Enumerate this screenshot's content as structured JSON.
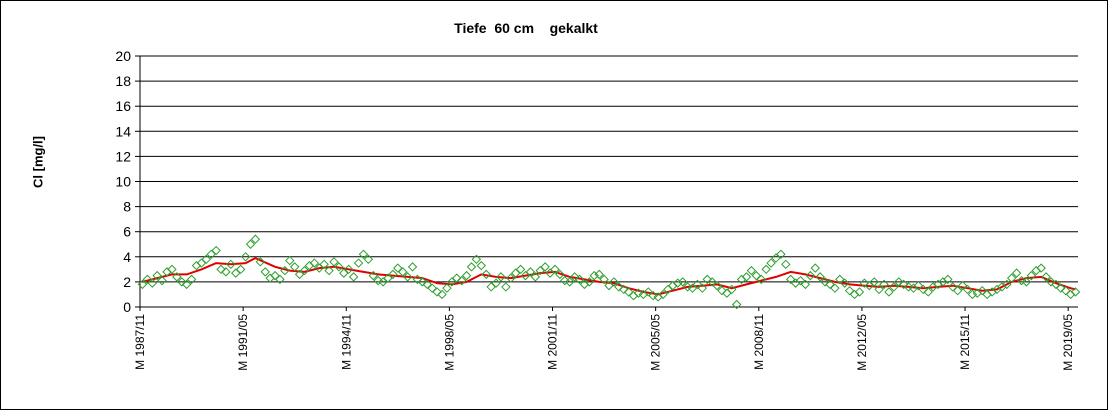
{
  "chart_data": {
    "type": "scatter",
    "title": "Tiefe  60 cm    gekalkt",
    "ylabel": "Cl [mg/l]",
    "xlabel": "",
    "ylim": [
      0,
      20
    ],
    "yticks": [
      0,
      2,
      4,
      6,
      8,
      10,
      12,
      14,
      16,
      18,
      20
    ],
    "grid": "horizontal",
    "legend": "none",
    "colors": {
      "points": "#2e9e2e",
      "trend": "#e00000",
      "grid": "#000000"
    },
    "xlim": [
      "1987-11",
      "2019-09"
    ],
    "xticks": [
      {
        "label": "M 1987/11",
        "date": "1987-11"
      },
      {
        "label": "M 1991/05",
        "date": "1991-05"
      },
      {
        "label": "M 1994/11",
        "date": "1994-11"
      },
      {
        "label": "M 1998/05",
        "date": "1998-05"
      },
      {
        "label": "M 2001/11",
        "date": "2001-11"
      },
      {
        "label": "M 2005/05",
        "date": "2005-05"
      },
      {
        "label": "M 2008/11",
        "date": "2008-11"
      },
      {
        "label": "M 2012/05",
        "date": "2012-05"
      },
      {
        "label": "M 2015/11",
        "date": "2015-11"
      },
      {
        "label": "M 2019/05",
        "date": "2019-05"
      }
    ],
    "series": [
      {
        "type": "scatter",
        "points": [
          [
            "1987-12",
            1.8
          ],
          [
            "1988-02",
            2.2
          ],
          [
            "1988-04",
            1.9
          ],
          [
            "1988-06",
            2.5
          ],
          [
            "1988-08",
            2.1
          ],
          [
            "1988-10",
            2.8
          ],
          [
            "1988-12",
            3.0
          ],
          [
            "1989-02",
            2.4
          ],
          [
            "1989-04",
            2.0
          ],
          [
            "1989-06",
            1.8
          ],
          [
            "1989-08",
            2.2
          ],
          [
            "1989-10",
            3.3
          ],
          [
            "1989-12",
            3.5
          ],
          [
            "1990-02",
            3.8
          ],
          [
            "1990-04",
            4.2
          ],
          [
            "1990-06",
            4.5
          ],
          [
            "1990-08",
            3.0
          ],
          [
            "1990-10",
            2.8
          ],
          [
            "1990-12",
            3.4
          ],
          [
            "1991-02",
            2.7
          ],
          [
            "1991-04",
            3.0
          ],
          [
            "1991-06",
            4.0
          ],
          [
            "1991-08",
            5.0
          ],
          [
            "1991-10",
            5.4
          ],
          [
            "1991-12",
            3.6
          ],
          [
            "1992-02",
            2.8
          ],
          [
            "1992-04",
            2.3
          ],
          [
            "1992-06",
            2.5
          ],
          [
            "1992-08",
            2.2
          ],
          [
            "1992-10",
            2.9
          ],
          [
            "1992-12",
            3.7
          ],
          [
            "1993-02",
            3.2
          ],
          [
            "1993-04",
            2.6
          ],
          [
            "1993-06",
            2.9
          ],
          [
            "1993-08",
            3.3
          ],
          [
            "1993-10",
            3.5
          ],
          [
            "1993-12",
            3.1
          ],
          [
            "1994-02",
            3.4
          ],
          [
            "1994-04",
            2.9
          ],
          [
            "1994-06",
            3.6
          ],
          [
            "1994-08",
            3.2
          ],
          [
            "1994-10",
            2.7
          ],
          [
            "1994-12",
            3.0
          ],
          [
            "1995-02",
            2.4
          ],
          [
            "1995-04",
            3.5
          ],
          [
            "1995-06",
            4.2
          ],
          [
            "1995-08",
            3.8
          ],
          [
            "1995-10",
            2.5
          ],
          [
            "1995-12",
            2.1
          ],
          [
            "1996-02",
            2.0
          ],
          [
            "1996-04",
            2.3
          ],
          [
            "1996-06",
            2.6
          ],
          [
            "1996-08",
            3.1
          ],
          [
            "1996-10",
            2.8
          ],
          [
            "1996-12",
            2.4
          ],
          [
            "1997-02",
            3.2
          ],
          [
            "1997-04",
            2.2
          ],
          [
            "1997-06",
            2.0
          ],
          [
            "1997-08",
            1.8
          ],
          [
            "1997-10",
            1.5
          ],
          [
            "1997-12",
            1.2
          ],
          [
            "1998-02",
            1.0
          ],
          [
            "1998-04",
            1.5
          ],
          [
            "1998-06",
            2.0
          ],
          [
            "1998-08",
            2.3
          ],
          [
            "1998-10",
            2.1
          ],
          [
            "1998-12",
            2.5
          ],
          [
            "1999-02",
            3.2
          ],
          [
            "1999-04",
            3.8
          ],
          [
            "1999-06",
            3.3
          ],
          [
            "1999-08",
            2.6
          ],
          [
            "1999-10",
            1.6
          ],
          [
            "1999-12",
            1.9
          ],
          [
            "2000-02",
            2.4
          ],
          [
            "2000-04",
            1.6
          ],
          [
            "2000-06",
            2.3
          ],
          [
            "2000-08",
            2.7
          ],
          [
            "2000-10",
            3.0
          ],
          [
            "2000-12",
            2.5
          ],
          [
            "2001-02",
            2.8
          ],
          [
            "2001-04",
            2.4
          ],
          [
            "2001-06",
            2.9
          ],
          [
            "2001-08",
            3.2
          ],
          [
            "2001-10",
            2.7
          ],
          [
            "2001-12",
            3.0
          ],
          [
            "2002-02",
            2.6
          ],
          [
            "2002-04",
            2.1
          ],
          [
            "2002-06",
            2.0
          ],
          [
            "2002-08",
            2.4
          ],
          [
            "2002-10",
            2.2
          ],
          [
            "2002-12",
            1.8
          ],
          [
            "2003-02",
            2.0
          ],
          [
            "2003-04",
            2.5
          ],
          [
            "2003-06",
            2.6
          ],
          [
            "2003-08",
            2.2
          ],
          [
            "2003-10",
            1.7
          ],
          [
            "2003-12",
            2.0
          ],
          [
            "2004-02",
            1.6
          ],
          [
            "2004-04",
            1.4
          ],
          [
            "2004-06",
            1.2
          ],
          [
            "2004-08",
            0.9
          ],
          [
            "2004-10",
            1.1
          ],
          [
            "2004-12",
            1.0
          ],
          [
            "2005-02",
            1.2
          ],
          [
            "2005-04",
            0.9
          ],
          [
            "2005-06",
            0.8
          ],
          [
            "2005-08",
            1.0
          ],
          [
            "2005-10",
            1.4
          ],
          [
            "2005-12",
            1.7
          ],
          [
            "2006-02",
            1.9
          ],
          [
            "2006-04",
            2.0
          ],
          [
            "2006-06",
            1.6
          ],
          [
            "2006-08",
            1.5
          ],
          [
            "2006-10",
            1.8
          ],
          [
            "2006-12",
            1.5
          ],
          [
            "2007-02",
            2.2
          ],
          [
            "2007-04",
            2.0
          ],
          [
            "2007-06",
            1.7
          ],
          [
            "2007-08",
            1.3
          ],
          [
            "2007-10",
            1.1
          ],
          [
            "2007-12",
            1.4
          ],
          [
            "2008-02",
            0.2
          ],
          [
            "2008-04",
            2.2
          ],
          [
            "2008-06",
            2.4
          ],
          [
            "2008-08",
            2.9
          ],
          [
            "2008-10",
            2.5
          ],
          [
            "2008-12",
            2.2
          ],
          [
            "2009-02",
            3.0
          ],
          [
            "2009-04",
            3.5
          ],
          [
            "2009-06",
            3.9
          ],
          [
            "2009-08",
            4.2
          ],
          [
            "2009-10",
            3.4
          ],
          [
            "2009-12",
            2.2
          ],
          [
            "2010-02",
            1.9
          ],
          [
            "2010-04",
            2.1
          ],
          [
            "2010-06",
            1.8
          ],
          [
            "2010-08",
            2.5
          ],
          [
            "2010-10",
            3.1
          ],
          [
            "2010-12",
            2.4
          ],
          [
            "2011-02",
            2.0
          ],
          [
            "2011-04",
            1.8
          ],
          [
            "2011-06",
            1.5
          ],
          [
            "2011-08",
            2.2
          ],
          [
            "2011-10",
            1.9
          ],
          [
            "2011-12",
            1.3
          ],
          [
            "2012-02",
            1.0
          ],
          [
            "2012-04",
            1.2
          ],
          [
            "2012-06",
            1.9
          ],
          [
            "2012-08",
            1.7
          ],
          [
            "2012-10",
            2.0
          ],
          [
            "2012-12",
            1.4
          ],
          [
            "2013-02",
            1.8
          ],
          [
            "2013-04",
            1.2
          ],
          [
            "2013-06",
            1.6
          ],
          [
            "2013-08",
            2.0
          ],
          [
            "2013-10",
            1.8
          ],
          [
            "2013-12",
            1.6
          ],
          [
            "2014-02",
            1.5
          ],
          [
            "2014-04",
            1.7
          ],
          [
            "2014-06",
            1.4
          ],
          [
            "2014-08",
            1.2
          ],
          [
            "2014-10",
            1.6
          ],
          [
            "2014-12",
            1.8
          ],
          [
            "2015-02",
            2.0
          ],
          [
            "2015-04",
            2.2
          ],
          [
            "2015-06",
            1.6
          ],
          [
            "2015-08",
            1.3
          ],
          [
            "2015-10",
            1.7
          ],
          [
            "2015-12",
            1.4
          ],
          [
            "2016-02",
            1.0
          ],
          [
            "2016-04",
            1.1
          ],
          [
            "2016-06",
            1.3
          ],
          [
            "2016-08",
            1.0
          ],
          [
            "2016-10",
            1.2
          ],
          [
            "2016-12",
            1.4
          ],
          [
            "2017-02",
            1.6
          ],
          [
            "2017-04",
            1.8
          ],
          [
            "2017-06",
            2.3
          ],
          [
            "2017-08",
            2.7
          ],
          [
            "2017-10",
            2.1
          ],
          [
            "2017-12",
            2.0
          ],
          [
            "2018-02",
            2.5
          ],
          [
            "2018-04",
            2.9
          ],
          [
            "2018-06",
            3.1
          ],
          [
            "2018-08",
            2.4
          ],
          [
            "2018-10",
            2.0
          ],
          [
            "2018-12",
            1.8
          ],
          [
            "2019-02",
            1.5
          ],
          [
            "2019-04",
            1.3
          ],
          [
            "2019-06",
            1.0
          ],
          [
            "2019-08",
            1.2
          ]
        ]
      },
      {
        "type": "line",
        "points": [
          [
            "1987-12",
            2.0
          ],
          [
            "1988-06",
            2.3
          ],
          [
            "1988-12",
            2.6
          ],
          [
            "1989-06",
            2.6
          ],
          [
            "1989-12",
            3.0
          ],
          [
            "1990-06",
            3.5
          ],
          [
            "1990-12",
            3.4
          ],
          [
            "1991-06",
            3.5
          ],
          [
            "1991-10",
            3.9
          ],
          [
            "1992-06",
            3.2
          ],
          [
            "1992-12",
            2.9
          ],
          [
            "1993-06",
            2.8
          ],
          [
            "1993-12",
            3.1
          ],
          [
            "1994-06",
            3.2
          ],
          [
            "1994-12",
            3.0
          ],
          [
            "1995-06",
            2.8
          ],
          [
            "1995-12",
            2.6
          ],
          [
            "1996-06",
            2.5
          ],
          [
            "1996-12",
            2.4
          ],
          [
            "1997-06",
            2.3
          ],
          [
            "1997-12",
            1.9
          ],
          [
            "1998-06",
            1.8
          ],
          [
            "1998-12",
            2.0
          ],
          [
            "1999-06",
            2.6
          ],
          [
            "1999-12",
            2.4
          ],
          [
            "2000-06",
            2.3
          ],
          [
            "2000-12",
            2.5
          ],
          [
            "2001-06",
            2.7
          ],
          [
            "2001-12",
            2.8
          ],
          [
            "2002-06",
            2.4
          ],
          [
            "2002-12",
            2.2
          ],
          [
            "2003-06",
            2.0
          ],
          [
            "2003-12",
            1.9
          ],
          [
            "2004-06",
            1.5
          ],
          [
            "2004-12",
            1.2
          ],
          [
            "2005-06",
            1.0
          ],
          [
            "2005-12",
            1.3
          ],
          [
            "2006-06",
            1.6
          ],
          [
            "2006-12",
            1.7
          ],
          [
            "2007-06",
            1.8
          ],
          [
            "2007-12",
            1.5
          ],
          [
            "2008-06",
            1.8
          ],
          [
            "2008-12",
            2.1
          ],
          [
            "2009-06",
            2.4
          ],
          [
            "2009-12",
            2.8
          ],
          [
            "2010-06",
            2.6
          ],
          [
            "2010-12",
            2.3
          ],
          [
            "2011-06",
            2.0
          ],
          [
            "2011-12",
            1.8
          ],
          [
            "2012-06",
            1.7
          ],
          [
            "2012-12",
            1.6
          ],
          [
            "2013-06",
            1.7
          ],
          [
            "2013-12",
            1.6
          ],
          [
            "2014-06",
            1.5
          ],
          [
            "2014-12",
            1.6
          ],
          [
            "2015-06",
            1.7
          ],
          [
            "2015-12",
            1.5
          ],
          [
            "2016-06",
            1.3
          ],
          [
            "2016-12",
            1.4
          ],
          [
            "2017-06",
            2.0
          ],
          [
            "2017-12",
            2.3
          ],
          [
            "2018-06",
            2.4
          ],
          [
            "2018-12",
            1.9
          ],
          [
            "2019-06",
            1.5
          ],
          [
            "2019-08",
            1.4
          ]
        ]
      }
    ]
  }
}
